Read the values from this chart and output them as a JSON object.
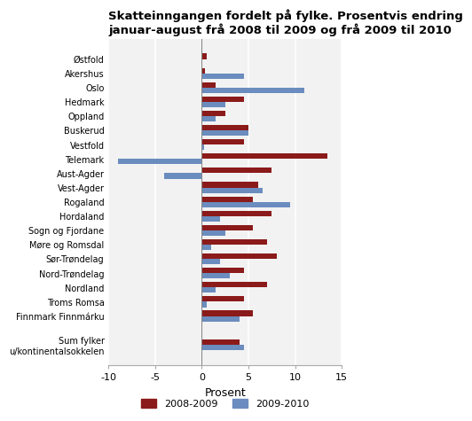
{
  "title": "Skatteinngangen fordelt på fylke. Prosentvis endring\njanuar-august frå 2008 til 2009 og frå 2009 til 2010",
  "categories": [
    "Østfold",
    "Akershus",
    "Oslo",
    "Hedmark",
    "Oppland",
    "Buskerud",
    "Vestfold",
    "Telemark",
    "Aust-Agder",
    "Vest-Agder",
    "Rogaland",
    "Hordaland",
    "Sogn og Fjordane",
    "Møre og Romsdal",
    "Sør-Trøndelag",
    "Nord-Trøndelag",
    "Nordland",
    "Troms Romsa",
    "Finnmark Finnmárku",
    "",
    "Sum fylker\nu/kontinentalsokkelen"
  ],
  "values_2008_2009": [
    0.5,
    0.3,
    1.5,
    4.5,
    2.5,
    5.0,
    4.5,
    13.5,
    7.5,
    6.0,
    5.5,
    7.5,
    5.5,
    7.0,
    8.0,
    4.5,
    7.0,
    4.5,
    5.5,
    0.0,
    4.0
  ],
  "values_2009_2010": [
    0.0,
    4.5,
    11.0,
    2.5,
    1.5,
    5.0,
    0.2,
    -9.0,
    -4.0,
    6.5,
    9.5,
    2.0,
    2.5,
    1.0,
    2.0,
    3.0,
    1.5,
    0.5,
    4.0,
    0.0,
    4.5
  ],
  "color_2008_2009": "#8B1A1A",
  "color_2009_2010": "#6B8CBE",
  "xlabel": "Prosent",
  "xlim": [
    -10,
    15
  ],
  "xticks": [
    -10,
    -5,
    0,
    5,
    10,
    15
  ],
  "xtick_labels": [
    "-10",
    "-5",
    "0",
    "5",
    "10",
    "15"
  ],
  "bar_height": 0.38,
  "legend_2008_2009": "2008-2009",
  "legend_2009_2010": "2009-2010",
  "background_color": "#f2f2f2",
  "grid_color": "#ffffff",
  "title_fontsize": 9.5
}
